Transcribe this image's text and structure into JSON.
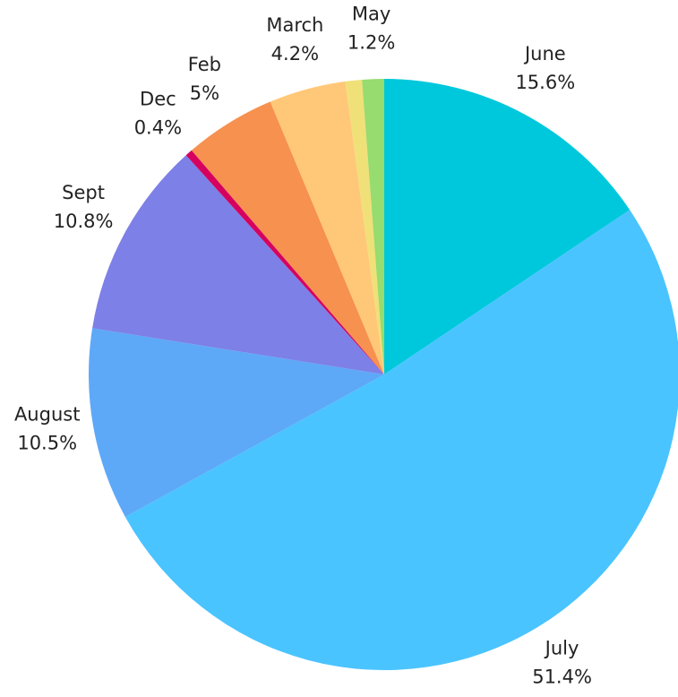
{
  "chart_data": {
    "type": "pie",
    "categories": [
      "June",
      "July",
      "August",
      "Sept",
      "Dec",
      "Feb",
      "March",
      null,
      "May"
    ],
    "values": [
      15.6,
      51.4,
      10.5,
      10.8,
      0.4,
      5,
      4.2,
      0.9,
      1.2
    ],
    "value_labels": [
      "15.6%",
      "51.4%",
      "10.5%",
      "10.8%",
      "0.4%",
      "5%",
      "4.2%",
      null,
      "1.2%"
    ],
    "colors": [
      "#00c8dc",
      "#4ac4ff",
      "#5ea8f8",
      "#7d80e6",
      "#d6005f",
      "#f79150",
      "#ffc878",
      "#f0e078",
      "#96dc6e"
    ]
  }
}
